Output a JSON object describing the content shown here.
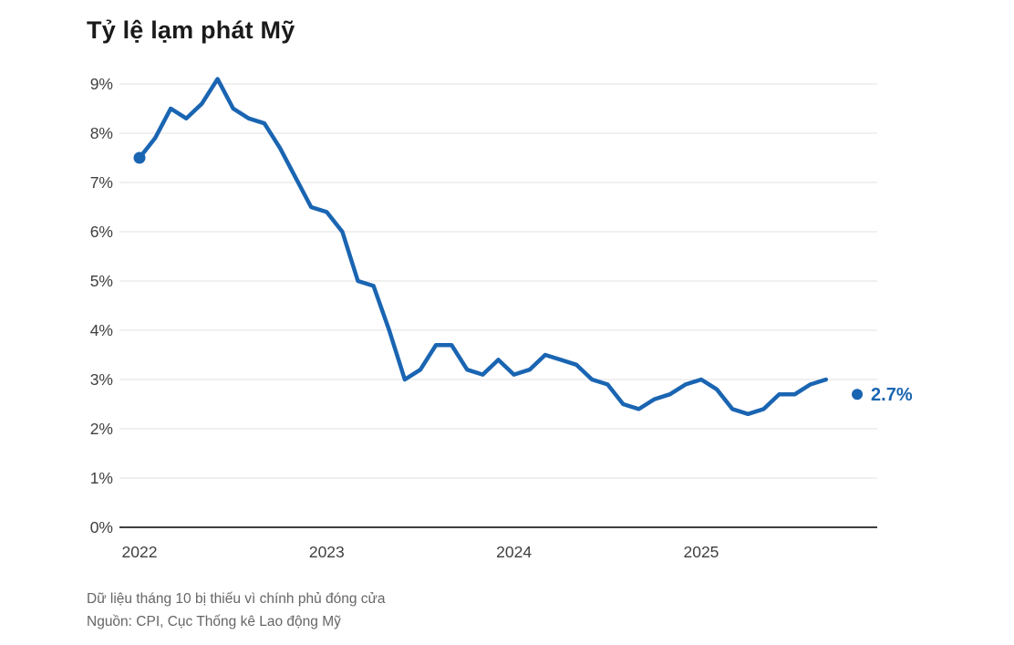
{
  "header": {
    "title": "Tỷ lệ lạm phát Mỹ"
  },
  "footer": {
    "note": "Dữ liệu tháng 10 bị thiếu vì chính phủ đóng cửa",
    "source": "Nguồn: CPI, Cục Thống kê Lao động Mỹ"
  },
  "colors": {
    "line": "#1a65b2",
    "annotation": "#1a65b2",
    "grid": "#e0e0e0",
    "axis_baseline": "#3f3f3f",
    "tick_label": "#3f3f3f",
    "title": "#1a1a1a",
    "footnote": "#666666",
    "background": "#ffffff"
  },
  "chart_data": {
    "type": "line",
    "title": "Tỷ lệ lạm phát Mỹ",
    "unit": "%",
    "ylim": [
      0,
      9
    ],
    "y_tick_step": 1,
    "y_tick_labels": [
      "0%",
      "1%",
      "2%",
      "3%",
      "4%",
      "5%",
      "6%",
      "7%",
      "8%",
      "9%"
    ],
    "x_tick_labels": [
      "2022",
      "2023",
      "2024",
      "2025"
    ],
    "x_months_per_tick": 12,
    "months_start": "2022-01",
    "grid": true,
    "legend": false,
    "series": [
      {
        "name": "CPI",
        "values": [
          7.5,
          7.9,
          8.5,
          8.3,
          8.6,
          9.1,
          8.5,
          8.3,
          8.2,
          7.7,
          7.1,
          6.5,
          6.4,
          6.0,
          5.0,
          4.9,
          4.0,
          3.0,
          3.2,
          3.7,
          3.7,
          3.2,
          3.1,
          3.4,
          3.1,
          3.2,
          3.5,
          3.4,
          3.3,
          3.0,
          2.9,
          2.5,
          2.4,
          2.6,
          2.7,
          2.9,
          3.0,
          2.8,
          2.4,
          2.3,
          2.4,
          2.7,
          2.7,
          2.9,
          3.0
        ]
      }
    ],
    "missing_month_offset": 45,
    "detached_point": {
      "month_offset": 46,
      "value": 2.7,
      "label": "2.7%"
    },
    "start_point_marker": true
  }
}
